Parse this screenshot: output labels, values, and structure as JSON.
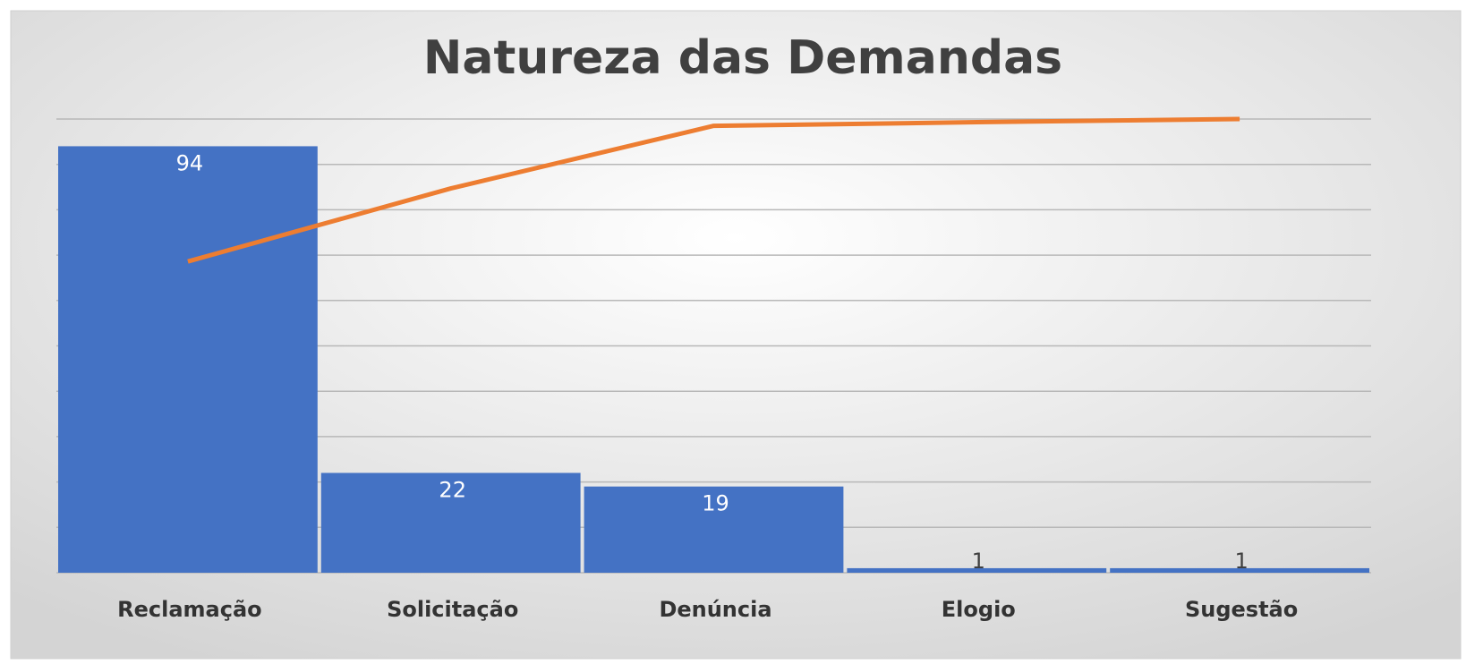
{
  "chart_data": {
    "type": "pareto",
    "title": "Natureza das Demandas",
    "categories": [
      "Reclamação",
      "Solicitação",
      "Denúncia",
      "Elogio",
      "Sugestão"
    ],
    "series": [
      {
        "color": "#4472c4",
        "values": [
          94,
          22,
          19,
          1,
          1
        ]
      },
      {
        "color": "#ed7d31",
        "axis": "y2",
        "values": [
          68.6,
          84.7,
          98.5,
          99.3,
          100
        ]
      }
    ],
    "ylim": [
      0,
      100
    ],
    "yticks": [
      0,
      10,
      20,
      30,
      40,
      50,
      60,
      70,
      80,
      90,
      100
    ],
    "y2lim": [
      0,
      100
    ],
    "grid": true
  }
}
